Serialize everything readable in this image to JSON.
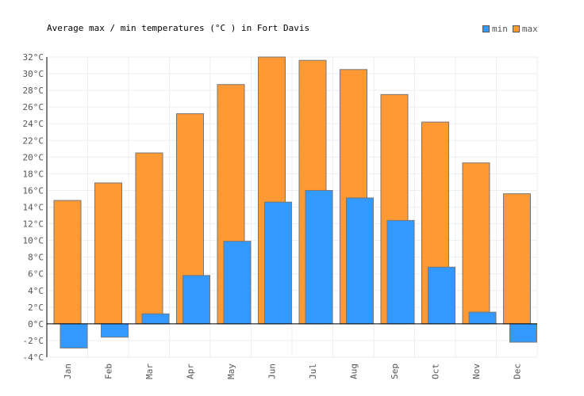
{
  "chart_data": {
    "type": "bar",
    "title": "Average max / min temperatures (°C ) in Fort Davis",
    "categories": [
      "Jan",
      "Feb",
      "Mar",
      "Apr",
      "May",
      "Jun",
      "Jul",
      "Aug",
      "Sep",
      "Oct",
      "Nov",
      "Dec"
    ],
    "series": [
      {
        "name": "min",
        "color": "#3399ff",
        "values": [
          -2.9,
          -1.6,
          1.2,
          5.8,
          9.9,
          14.6,
          16.0,
          15.1,
          12.4,
          6.8,
          1.4,
          -2.2
        ]
      },
      {
        "name": "max",
        "color": "#ff9933",
        "values": [
          14.8,
          16.9,
          20.5,
          25.2,
          28.7,
          32.0,
          31.6,
          30.5,
          27.5,
          24.2,
          19.3,
          15.6
        ]
      }
    ],
    "ylim": [
      -4,
      32
    ],
    "yticks": [
      "-4°C",
      "-2°C",
      "0°C",
      "2°C",
      "4°C",
      "6°C",
      "8°C",
      "10°C",
      "12°C",
      "14°C",
      "16°C",
      "18°C",
      "20°C",
      "22°C",
      "24°C",
      "26°C",
      "28°C",
      "30°C",
      "32°C"
    ],
    "grid": true,
    "legend": "top-right"
  }
}
